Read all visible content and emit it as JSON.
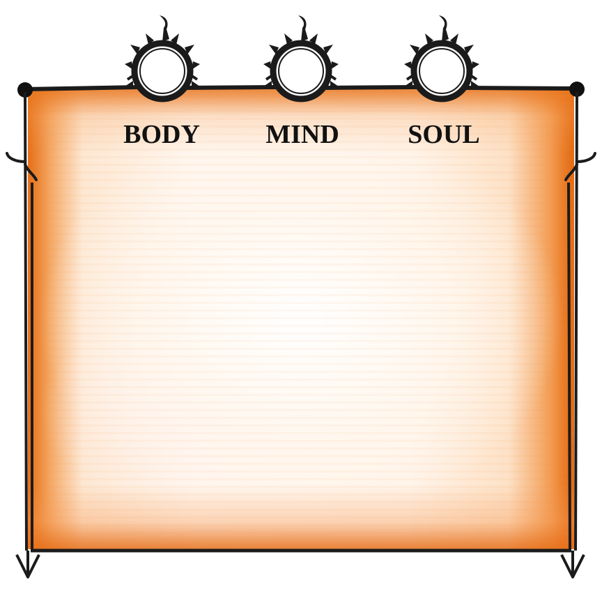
{
  "stats": [
    {
      "id": "body",
      "label": "BODY",
      "emblem": "flame-ring-icon"
    },
    {
      "id": "mind",
      "label": "MIND",
      "emblem": "flame-ring-icon"
    },
    {
      "id": "soul",
      "label": "SOUL",
      "emblem": "flame-ring-icon"
    }
  ],
  "colors": {
    "parchment_edge": "#e56a12",
    "parchment_center": "#fff6ee",
    "frame_ink": "#1b1b1b"
  }
}
